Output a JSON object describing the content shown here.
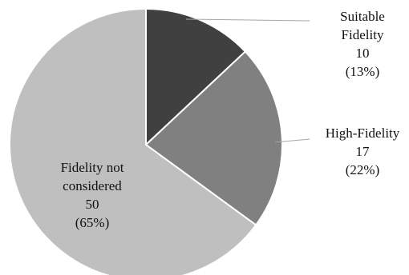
{
  "chart_data": {
    "type": "pie",
    "slices": [
      {
        "label_lines": [
          "Suitable",
          "Fidelity"
        ],
        "value": 10,
        "percent": "(13%)",
        "color": "#404040"
      },
      {
        "label_lines": [
          "High-Fidelity"
        ],
        "value": 17,
        "percent": "(22%)",
        "color": "#808080"
      },
      {
        "label_lines": [
          "Fidelity not",
          "considered"
        ],
        "value": 50,
        "percent": "(65%)",
        "color": "#bfbfbf"
      }
    ],
    "start_angle_deg": 0,
    "direction": "clockwise",
    "legend": "none",
    "label_placement": [
      "outside-right",
      "outside-right",
      "inside"
    ]
  }
}
